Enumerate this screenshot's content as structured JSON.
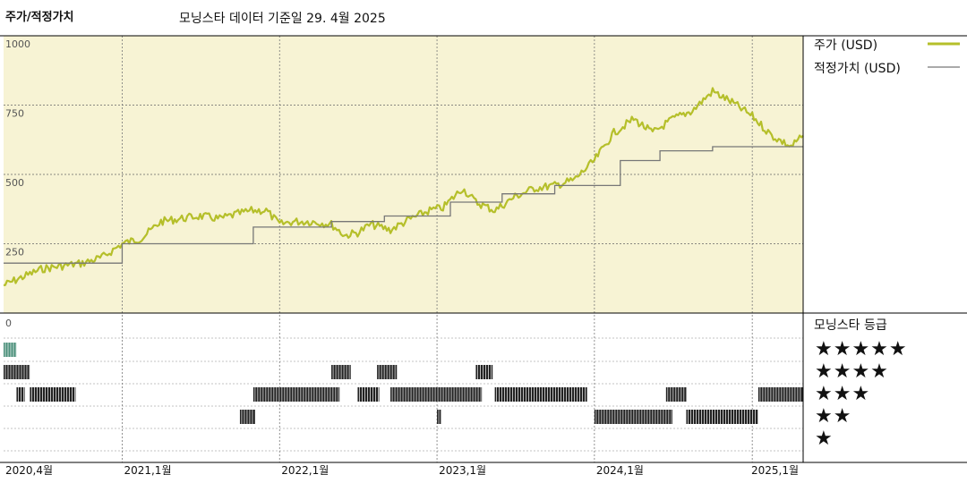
{
  "header": {
    "title": "주가/적정가치",
    "subtitle": "모닝스타 데이터 기준일 29. 4월 2025"
  },
  "legend": {
    "price_label": "주가 (USD)",
    "fair_label": "적정가치 (USD)",
    "price_color": "#b5bf2a",
    "fair_color": "#777777"
  },
  "rating": {
    "title": "모닝스타 등급",
    "stars": [
      "★★★★★",
      "★★★★",
      "★★★",
      "★★",
      "★"
    ],
    "active_color": "#4a8f7a",
    "bar_color": "#222222"
  },
  "chart_data": {
    "type": "line",
    "title": "주가/적정가치",
    "ylabel": "",
    "ylim": [
      0,
      1000
    ],
    "yticks": [
      0,
      250,
      500,
      750,
      1000
    ],
    "ytick_labels": [
      "0",
      "250",
      "500",
      "750",
      "1000"
    ],
    "xlim": [
      "2020-04-01",
      "2025-04-29"
    ],
    "xticks": [
      "2020-04-01",
      "2021-01-01",
      "2022-01-01",
      "2023-01-01",
      "2024-01-01",
      "2025-01-01"
    ],
    "xtick_labels": [
      "2020,4월",
      "2021,1월",
      "2022,1월",
      "2023,1월",
      "2024,1월",
      "2025,1월"
    ],
    "plot_background": "#f7f3d4",
    "series": [
      {
        "name": "주가 (USD)",
        "color": "#b5bf2a",
        "points": [
          [
            "2020-04-01",
            100
          ],
          [
            "2020-05-15",
            130
          ],
          [
            "2020-07-01",
            160
          ],
          [
            "2020-08-15",
            170
          ],
          [
            "2020-10-01",
            180
          ],
          [
            "2020-11-15",
            200
          ],
          [
            "2021-01-01",
            250
          ],
          [
            "2021-02-15",
            270
          ],
          [
            "2021-04-01",
            330
          ],
          [
            "2021-05-15",
            340
          ],
          [
            "2021-07-01",
            350
          ],
          [
            "2021-08-15",
            340
          ],
          [
            "2021-10-01",
            360
          ],
          [
            "2021-11-01",
            370
          ],
          [
            "2021-12-01",
            370
          ],
          [
            "2022-01-01",
            320
          ],
          [
            "2022-02-01",
            330
          ],
          [
            "2022-03-15",
            330
          ],
          [
            "2022-05-01",
            320
          ],
          [
            "2022-06-01",
            280
          ],
          [
            "2022-07-01",
            290
          ],
          [
            "2022-08-01",
            320
          ],
          [
            "2022-09-15",
            300
          ],
          [
            "2022-11-01",
            340
          ],
          [
            "2022-12-15",
            370
          ],
          [
            "2023-01-15",
            380
          ],
          [
            "2023-03-01",
            450
          ],
          [
            "2023-04-01",
            400
          ],
          [
            "2023-05-15",
            370
          ],
          [
            "2023-07-01",
            420
          ],
          [
            "2023-08-15",
            450
          ],
          [
            "2023-10-01",
            460
          ],
          [
            "2023-11-15",
            480
          ],
          [
            "2024-01-01",
            550
          ],
          [
            "2024-02-15",
            650
          ],
          [
            "2024-04-01",
            700
          ],
          [
            "2024-05-15",
            650
          ],
          [
            "2024-07-01",
            700
          ],
          [
            "2024-08-15",
            730
          ],
          [
            "2024-10-01",
            800
          ],
          [
            "2024-11-15",
            760
          ],
          [
            "2025-01-01",
            710
          ],
          [
            "2025-02-15",
            640
          ],
          [
            "2025-04-01",
            600
          ],
          [
            "2025-04-29",
            640
          ]
        ]
      },
      {
        "name": "적정가치 (USD)",
        "color": "#777777",
        "steps": [
          [
            "2020-04-01",
            180
          ],
          [
            "2021-01-01",
            250
          ],
          [
            "2021-11-01",
            310
          ],
          [
            "2022-05-01",
            330
          ],
          [
            "2022-09-01",
            350
          ],
          [
            "2023-02-01",
            400
          ],
          [
            "2023-06-01",
            430
          ],
          [
            "2023-10-01",
            460
          ],
          [
            "2024-03-01",
            550
          ],
          [
            "2024-06-01",
            585
          ],
          [
            "2024-10-01",
            600
          ],
          [
            "2025-04-29",
            600
          ]
        ]
      }
    ],
    "rating_history": [
      {
        "stars": 5,
        "periods": [
          [
            "2020-04-01",
            "2020-05-01"
          ]
        ]
      },
      {
        "stars": 4,
        "periods": [
          [
            "2020-04-01",
            "2020-06-01"
          ],
          [
            "2022-05-01",
            "2022-06-15"
          ],
          [
            "2022-08-15",
            "2022-09-30"
          ],
          [
            "2023-04-01",
            "2023-05-10"
          ]
        ]
      },
      {
        "stars": 3,
        "periods": [
          [
            "2020-05-01",
            "2020-05-20"
          ],
          [
            "2020-06-01",
            "2020-09-15"
          ],
          [
            "2021-11-01",
            "2022-05-20"
          ],
          [
            "2022-07-01",
            "2022-08-20"
          ],
          [
            "2022-09-15",
            "2023-04-15"
          ],
          [
            "2023-05-15",
            "2023-12-15"
          ],
          [
            "2024-06-15",
            "2024-08-01"
          ],
          [
            "2025-01-15",
            "2025-04-29"
          ]
        ]
      },
      {
        "stars": 2,
        "periods": [
          [
            "2021-10-01",
            "2021-11-05"
          ],
          [
            "2023-01-01",
            "2023-01-10"
          ],
          [
            "2024-01-01",
            "2024-06-30"
          ],
          [
            "2024-08-01",
            "2025-01-15"
          ]
        ]
      }
    ]
  }
}
